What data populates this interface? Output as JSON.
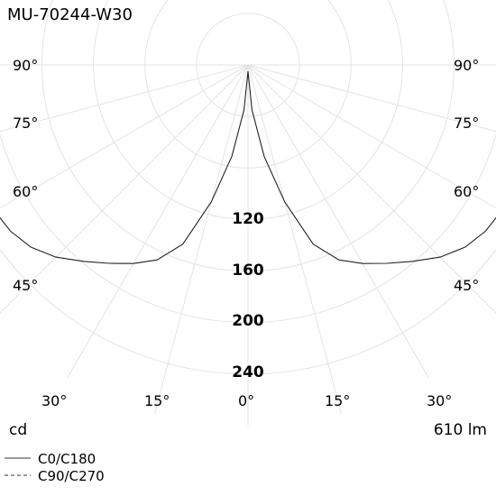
{
  "chart_data": {
    "type": "polar-line",
    "title": "MU-70244-W30",
    "unit": "cd",
    "flux": "610 lm",
    "angle_labels_left": [
      "90°",
      "75°",
      "60°",
      "45°",
      "30°",
      "15°"
    ],
    "angle_labels_bottom": [
      "0°"
    ],
    "angle_labels_right": [
      "90°",
      "75°",
      "60°",
      "45°",
      "30°",
      "15°"
    ],
    "angles": [
      0,
      15,
      30,
      45,
      60,
      75,
      90
    ],
    "rings": [
      40,
      80,
      120,
      160,
      200,
      240
    ],
    "ring_labels": [
      "120",
      "160",
      "200",
      "240"
    ],
    "rmax": 280,
    "series": [
      {
        "name": "C0/C180",
        "style": "solid",
        "points": [
          {
            "angle": 0,
            "value": 5
          },
          {
            "angle": 5,
            "value": 35
          },
          {
            "angle": 10,
            "value": 72
          },
          {
            "angle": 15,
            "value": 110
          },
          {
            "angle": 20,
            "value": 148
          },
          {
            "angle": 25,
            "value": 167
          },
          {
            "angle": 30,
            "value": 178
          },
          {
            "angle": 35,
            "value": 188
          },
          {
            "angle": 40,
            "value": 199
          },
          {
            "angle": 45,
            "value": 211
          },
          {
            "angle": 50,
            "value": 220
          },
          {
            "angle": 55,
            "value": 225
          },
          {
            "angle": 60,
            "value": 227
          },
          {
            "angle": 65,
            "value": 225
          },
          {
            "angle": 70,
            "value": 219
          },
          {
            "angle": 75,
            "value": 212
          },
          {
            "angle": 80,
            "value": 207
          },
          {
            "angle": 85,
            "value": 204
          },
          {
            "angle": 90,
            "value": 203
          }
        ]
      },
      {
        "name": "C90/C270",
        "style": "dashed",
        "points": []
      }
    ],
    "legend": [
      {
        "label": "C0/C180",
        "style": "solid"
      },
      {
        "label": "C90/C270",
        "style": "dashed"
      }
    ],
    "legend_position": "bottom-left"
  }
}
